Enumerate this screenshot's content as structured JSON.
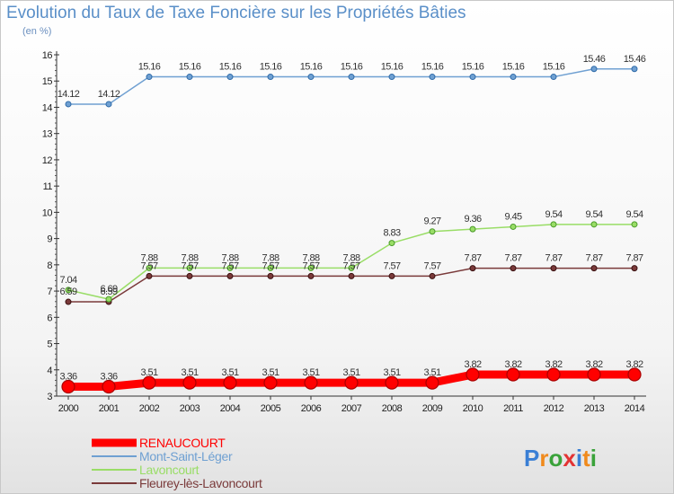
{
  "chart_data": {
    "type": "line",
    "title": "Evolution du Taux de Taxe Foncière sur les Propriétés Bâties",
    "unit_label": "(en %)",
    "categories": [
      "2000",
      "2001",
      "2002",
      "2003",
      "2004",
      "2005",
      "2006",
      "2007",
      "2008",
      "2009",
      "2010",
      "2011",
      "2012",
      "2013",
      "2014"
    ],
    "ylim": [
      3,
      16
    ],
    "yticks": [
      "3",
      "4",
      "5",
      "6",
      "7",
      "8",
      "9",
      "10",
      "11",
      "12",
      "13",
      "14",
      "15",
      "16"
    ],
    "grid": false,
    "legend_position": "bottom-left",
    "series": [
      {
        "name": "RENAUCOURT",
        "color": "#ff0000",
        "values": [
          3.36,
          3.36,
          3.51,
          3.51,
          3.51,
          3.51,
          3.51,
          3.51,
          3.51,
          3.51,
          3.82,
          3.82,
          3.82,
          3.82,
          3.82
        ],
        "labels": [
          "3.36",
          "3.36",
          "3.51",
          "3.51",
          "3.51",
          "3.51",
          "3.51",
          "3.51",
          "3.51",
          "3.51",
          "3.82",
          "3.82",
          "3.82",
          "3.82",
          "3.82"
        ]
      },
      {
        "name": "Mont-Saint-Léger",
        "color": "#6fa0d2",
        "values": [
          14.12,
          14.12,
          15.16,
          15.16,
          15.16,
          15.16,
          15.16,
          15.16,
          15.16,
          15.16,
          15.16,
          15.16,
          15.16,
          15.46,
          15.46
        ],
        "labels": [
          "14.12",
          "14.12",
          "15.16",
          "15.16",
          "15.16",
          "15.16",
          "15.16",
          "15.16",
          "15.16",
          "15.16",
          "15.16",
          "15.16",
          "15.16",
          "15.46",
          "15.46"
        ]
      },
      {
        "name": "Lavoncourt",
        "color": "#99dd66",
        "values": [
          7.04,
          6.69,
          7.88,
          7.88,
          7.88,
          7.88,
          7.88,
          7.88,
          8.83,
          9.27,
          9.36,
          9.45,
          9.54,
          9.54,
          9.54
        ],
        "labels": [
          "7.04",
          "6.69",
          "7.88",
          "7.88",
          "7.88",
          "7.88",
          "7.88",
          "7.88",
          "8.83",
          "9.27",
          "9.36",
          "9.45",
          "9.54",
          "9.54",
          "9.54"
        ]
      },
      {
        "name": "Fleurey-lès-Lavoncourt",
        "color": "#7a3a3a",
        "values": [
          6.59,
          6.59,
          7.57,
          7.57,
          7.57,
          7.57,
          7.57,
          7.57,
          7.57,
          7.57,
          7.87,
          7.87,
          7.87,
          7.87,
          7.87
        ],
        "labels": [
          "6.59",
          "6.59",
          "7.57",
          "7.57",
          "7.57",
          "7.57",
          "7.57",
          "7.57",
          "7.57",
          "7.57",
          "7.87",
          "7.87",
          "7.87",
          "7.87",
          "7.87"
        ]
      }
    ]
  },
  "logo": {
    "text": "Proxiti"
  }
}
